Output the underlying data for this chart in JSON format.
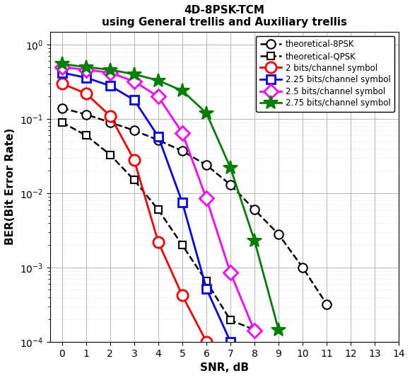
{
  "title_line1": "4D-8PSK-TCM",
  "title_line2": "using General trellis and Auxiliary trellis",
  "xlabel": "SNR, dB",
  "ylabel": "BER(Bit Error Rate)",
  "xlim": [
    -0.5,
    14
  ],
  "ylim": [
    0.0001,
    1.5
  ],
  "background_color": "#ffffff",
  "series": [
    {
      "label": "theoretical-8PSK",
      "color": "black",
      "linestyle": "--",
      "linewidth": 1.8,
      "marker": "o",
      "markersize": 9,
      "markerfacecolor": "white",
      "markeredgecolor": "black",
      "markeredgewidth": 1.5,
      "x": [
        0,
        1,
        2,
        3,
        4,
        5,
        6,
        7,
        8,
        9,
        10,
        11
      ],
      "y": [
        0.14,
        0.115,
        0.09,
        0.07,
        0.052,
        0.037,
        0.024,
        0.013,
        0.006,
        0.0028,
        0.001,
        0.00032
      ]
    },
    {
      "label": "theoretical-QPSK",
      "color": "black",
      "linestyle": "--",
      "linewidth": 1.8,
      "marker": "s",
      "markersize": 7,
      "markerfacecolor": "white",
      "markeredgecolor": "black",
      "markeredgewidth": 1.5,
      "x": [
        0,
        1,
        2,
        3,
        4,
        5,
        6,
        7,
        8
      ],
      "y": [
        0.09,
        0.06,
        0.033,
        0.015,
        0.006,
        0.002,
        0.00065,
        0.000195,
        0.000145
      ]
    },
    {
      "label": "2 bits/channel symbol",
      "color": "red",
      "linestyle": "-",
      "linewidth": 2.0,
      "marker": "o",
      "markersize": 11,
      "markerfacecolor": "white",
      "markeredgecolor": "red",
      "markeredgewidth": 2.0,
      "x": [
        0,
        1,
        2,
        3,
        4,
        5,
        6
      ],
      "y": [
        0.3,
        0.22,
        0.11,
        0.028,
        0.0022,
        0.00042,
        0.0001
      ]
    },
    {
      "label": "2.25 bits/channel symbol",
      "color": "blue",
      "linestyle": "-",
      "linewidth": 2.0,
      "marker": "s",
      "markersize": 9,
      "markerfacecolor": "white",
      "markeredgecolor": "blue",
      "markeredgewidth": 2.0,
      "x": [
        0,
        1,
        2,
        3,
        4,
        5,
        6,
        7
      ],
      "y": [
        0.42,
        0.36,
        0.28,
        0.18,
        0.058,
        0.0075,
        0.00052,
        0.0001
      ]
    },
    {
      "label": "2.5 bits/channel symbol",
      "color": "#ff00ff",
      "linestyle": "-",
      "linewidth": 2.0,
      "marker": "D",
      "markersize": 10,
      "markerfacecolor": "white",
      "markeredgecolor": "#ff00ff",
      "markeredgewidth": 2.0,
      "x": [
        0,
        1,
        2,
        3,
        4,
        5,
        6,
        7,
        8
      ],
      "y": [
        0.5,
        0.46,
        0.42,
        0.32,
        0.2,
        0.065,
        0.0085,
        0.00085,
        0.00014
      ]
    },
    {
      "label": "2.75 bits/channel symbol",
      "color": "#008000",
      "linestyle": "-",
      "linewidth": 2.0,
      "marker": "*",
      "markersize": 15,
      "markerfacecolor": "#008000",
      "markeredgecolor": "#008000",
      "markeredgewidth": 1.5,
      "x": [
        0,
        1,
        2,
        3,
        4,
        5,
        6,
        7,
        8,
        9
      ],
      "y": [
        0.55,
        0.5,
        0.46,
        0.4,
        0.33,
        0.24,
        0.12,
        0.022,
        0.0023,
        0.000145
      ]
    }
  ]
}
